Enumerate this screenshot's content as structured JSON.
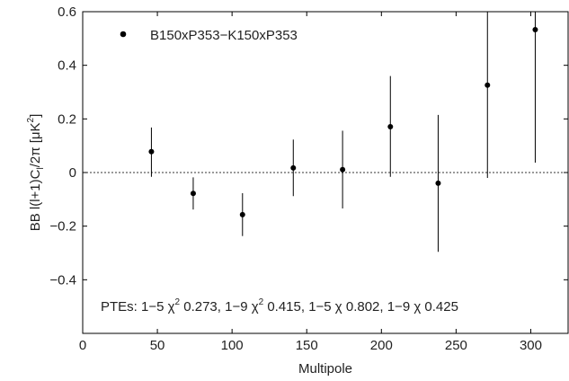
{
  "chart_data": {
    "type": "scatter",
    "xlabel": "Multipole",
    "ylabel": "BB l(l+1)C",
    "ylabel_sub": "l",
    "ylabel_tail": "/2π [μK",
    "ylabel_sup": "2",
    "ylabel_end": "]",
    "xlim": [
      0,
      325
    ],
    "ylim": [
      -0.6,
      0.6
    ],
    "x_ticks": [
      0,
      50,
      100,
      150,
      200,
      250,
      300
    ],
    "x_tick_labels": [
      "0",
      "50",
      "100",
      "150",
      "200",
      "250",
      "300"
    ],
    "y_ticks": [
      0.6,
      0.4,
      0.2,
      0,
      -0.2,
      -0.4
    ],
    "y_tick_labels": [
      "0.6",
      "0.4",
      "0.2",
      "0",
      "−0.2",
      "−0.4"
    ],
    "grid": false,
    "zero_line": true,
    "legend_position": "top-left",
    "legend": [
      "B150xP353−K150xP353"
    ],
    "series": [
      {
        "name": "B150xP353−K150xP353",
        "x": [
          46,
          74,
          107,
          141,
          174,
          206,
          238,
          271,
          303
        ],
        "y": [
          0.078,
          -0.078,
          -0.157,
          0.017,
          0.011,
          0.171,
          -0.04,
          0.326,
          0.533
        ],
        "err_low": [
          0.094,
          0.06,
          0.08,
          0.105,
          0.145,
          0.187,
          0.256,
          0.346,
          0.496
        ],
        "err_high": [
          0.09,
          0.06,
          0.08,
          0.106,
          0.145,
          0.189,
          0.255,
          0.35,
          0.2
        ]
      }
    ],
    "annotation_parts": [
      "PTEs: 1−5 χ",
      "2",
      " 0.273, 1−9 χ",
      "2",
      " 0.415, 1−5 χ 0.802, 1−9 χ 0.425"
    ]
  }
}
